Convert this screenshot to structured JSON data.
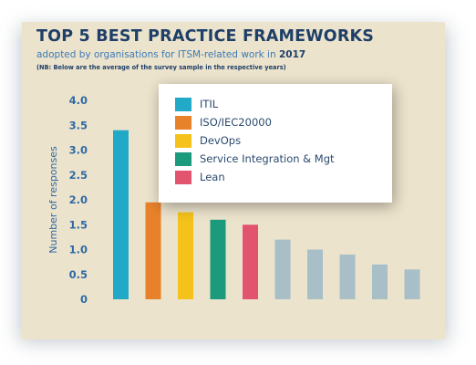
{
  "header": {
    "title": "TOP 5 BEST PRACTICE FRAMEWORKS",
    "subtitle_prefix": "adopted by organisations for ITSM-related work in ",
    "subtitle_year": "2017",
    "note": "(NB: Below are the average of the survey sample in the respective years)"
  },
  "chart_data": {
    "type": "bar",
    "title": "TOP 5 BEST PRACTICE FRAMEWORKS",
    "ylabel": "Number of responses",
    "xlabel": "",
    "ylim": [
      0,
      4.0
    ],
    "yticks": [
      "0",
      "0.5",
      "1.0",
      "1.5",
      "2.0",
      "2.5",
      "3.0",
      "3.5",
      "4.0"
    ],
    "grid": false,
    "legend_position": "top-right",
    "categories": [
      "ITIL",
      "ISO/IEC20000",
      "DevOps",
      "Service Integration & Mgt",
      "Lean",
      "",
      "",
      "",
      "",
      ""
    ],
    "values": [
      3.4,
      1.95,
      1.75,
      1.6,
      1.5,
      1.2,
      1.0,
      0.9,
      0.7,
      0.6
    ],
    "colors": [
      "#22a9c8",
      "#e8822a",
      "#f4c21b",
      "#1b9a7c",
      "#e2546e",
      "#a9bfc8",
      "#a9bfc8",
      "#a9bfc8",
      "#a9bfc8",
      "#a9bfc8"
    ],
    "legend": [
      {
        "label": "ITIL",
        "color": "#22a9c8"
      },
      {
        "label": "ISO/IEC20000",
        "color": "#e8822a"
      },
      {
        "label": "DevOps",
        "color": "#f4c21b"
      },
      {
        "label": "Service Integration & Mgt",
        "color": "#1b9a7c"
      },
      {
        "label": "Lean",
        "color": "#e2546e"
      }
    ]
  }
}
